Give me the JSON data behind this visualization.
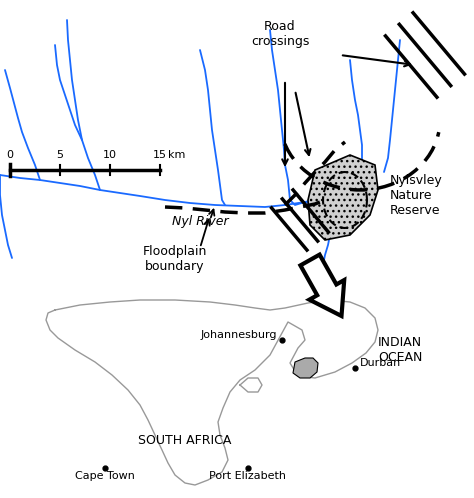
{
  "fig_width": 4.74,
  "fig_height": 4.98,
  "dpi": 100,
  "bg_color": "#ffffff",
  "river_color": "#1a6aff",
  "river_linewidth": 1.3,
  "top_map": {
    "xlim": [
      0,
      474
    ],
    "ylim": [
      0,
      280
    ],
    "y_start": 0.44,
    "y_end": 1.0
  },
  "bot_map": {
    "y_start": 0.0,
    "y_end": 0.4
  }
}
